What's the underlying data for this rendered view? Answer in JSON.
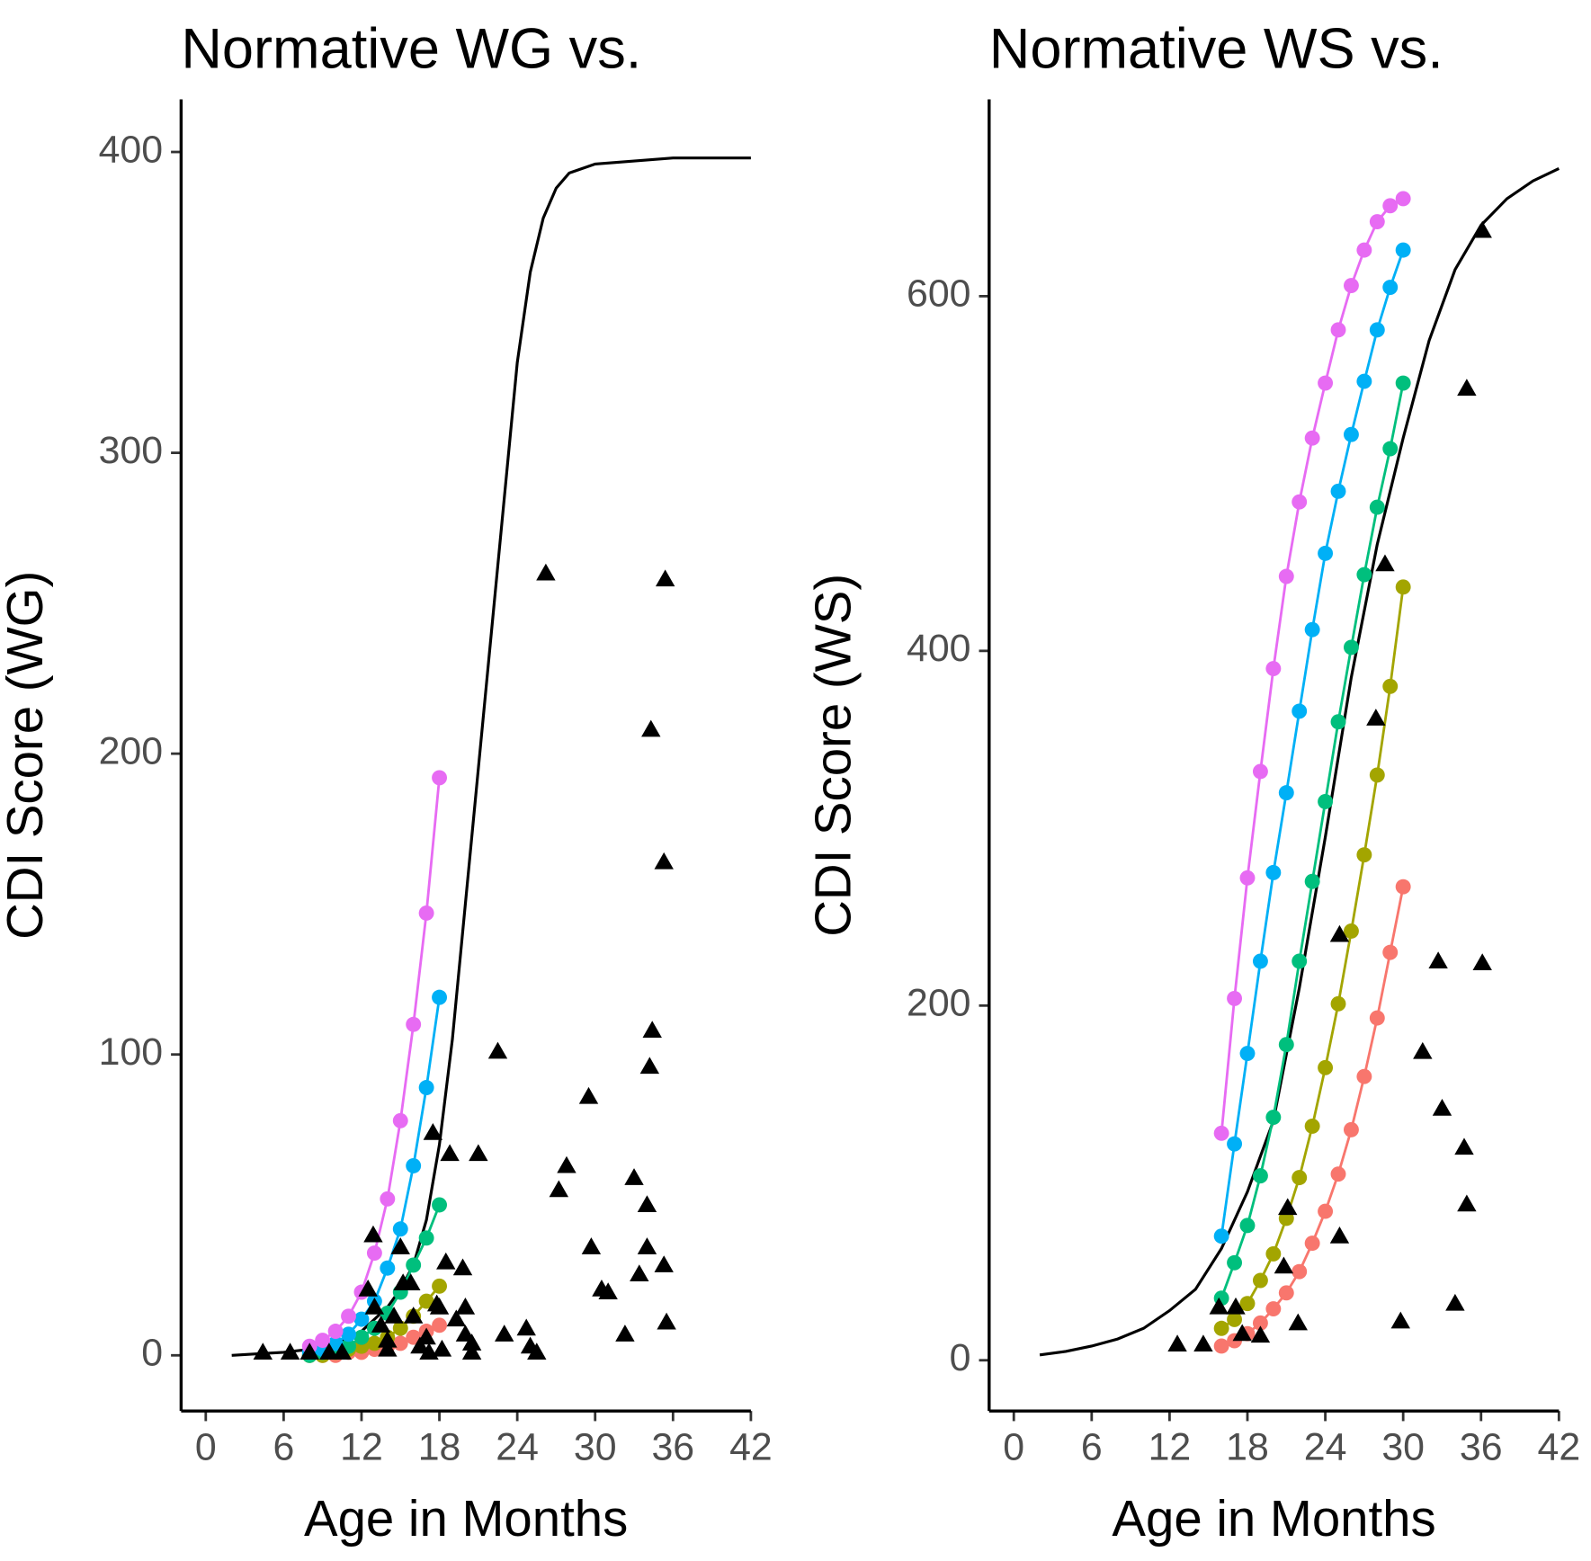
{
  "chart_data": [
    {
      "type": "line",
      "title": "Normative WG vs.",
      "xlabel": "Age in Months",
      "ylabel": "CDI Score (WG)",
      "xlim": [
        -1.9,
        42
      ],
      "ylim": [
        -18.5,
        417.5
      ],
      "xticks": [
        0,
        6,
        12,
        18,
        24,
        30,
        36,
        42
      ],
      "yticks": [
        0,
        100,
        200,
        300,
        400
      ],
      "series": [
        {
          "type": "line",
          "color": "#000000",
          "x": [
            2,
            4,
            6,
            8,
            10,
            12,
            14,
            15,
            16,
            17,
            18,
            19,
            20,
            21,
            22,
            23,
            24,
            25,
            26,
            27,
            28,
            30,
            33,
            36,
            39,
            42
          ],
          "values": [
            0,
            0.5,
            1,
            2,
            4,
            8,
            16,
            22,
            30,
            45,
            70,
            105,
            150,
            195,
            240,
            285,
            330,
            360,
            378,
            388,
            393,
            396,
            397,
            398,
            398,
            398
          ]
        },
        {
          "type": "line",
          "markers": true,
          "color": "#F8766D",
          "x": [
            8,
            9,
            10,
            11,
            12,
            13,
            14,
            15,
            16,
            17,
            18
          ],
          "values": [
            0,
            0,
            0,
            1,
            1,
            2,
            3,
            4,
            6,
            8,
            10
          ]
        },
        {
          "type": "line",
          "markers": true,
          "color": "#A3A500",
          "x": [
            8,
            9,
            10,
            11,
            12,
            13,
            14,
            15,
            16,
            17,
            18
          ],
          "values": [
            0,
            0,
            1,
            2,
            3,
            4,
            6,
            9,
            13,
            18,
            23
          ]
        },
        {
          "type": "line",
          "markers": true,
          "color": "#00BF7D",
          "x": [
            8,
            9,
            10,
            11,
            12,
            13,
            14,
            15,
            16,
            17,
            18
          ],
          "values": [
            0,
            1,
            2,
            3,
            6,
            9,
            14,
            21,
            30,
            39,
            50
          ]
        },
        {
          "type": "line",
          "markers": true,
          "color": "#00B0F6",
          "x": [
            8,
            9,
            10,
            11,
            12,
            13,
            14,
            15,
            16,
            17,
            18
          ],
          "values": [
            1,
            2,
            4,
            7,
            12,
            18,
            29,
            42,
            63,
            89,
            119
          ]
        },
        {
          "type": "line",
          "markers": true,
          "color": "#E76BF3",
          "x": [
            8,
            9,
            10,
            11,
            12,
            13,
            14,
            15,
            16,
            17,
            18
          ],
          "values": [
            3,
            5,
            8,
            13,
            21,
            34,
            52,
            78,
            110,
            147,
            192
          ]
        },
        {
          "type": "scatter",
          "marker": "triangle",
          "color": "#000000",
          "x": [
            4.4,
            6.5,
            8,
            9.5,
            10.5,
            12.9,
            12.5,
            13,
            13.5,
            14,
            14,
            14.5,
            15,
            15.2,
            15.8,
            16,
            16.5,
            17,
            17.2,
            17.5,
            17.8,
            18,
            18.2,
            18.8,
            18.5,
            19.3,
            19.8,
            20,
            20,
            20.5,
            20.5,
            21,
            22.5,
            23,
            24.7,
            25,
            25.5,
            26.2,
            27.2,
            27.8,
            29.5,
            29.7,
            30.5,
            31,
            32.3,
            33,
            33.4,
            34,
            34,
            34.2,
            34.3,
            34.4,
            35.3,
            35.3,
            35.4,
            35.5
          ],
          "values": [
            1,
            1,
            1,
            1,
            1,
            40,
            22,
            16,
            10,
            5,
            2,
            13,
            36,
            24,
            24,
            13,
            3,
            6,
            1,
            74,
            17,
            16,
            2,
            67,
            31,
            12,
            29,
            16,
            7,
            4,
            1,
            67,
            101,
            7,
            9,
            3,
            1,
            260,
            55,
            63,
            86,
            36,
            22,
            21,
            7,
            59,
            27,
            50,
            36,
            96,
            208,
            108,
            30,
            164,
            258,
            11
          ]
        }
      ]
    },
    {
      "type": "line",
      "title": "Normative WS vs.",
      "xlabel": "Age in Months",
      "ylabel": "CDI Score (WS)",
      "xlim": [
        -1.9,
        42
      ],
      "ylim": [
        -28.6,
        711
      ],
      "xticks": [
        0,
        6,
        12,
        18,
        24,
        30,
        36,
        42
      ],
      "yticks": [
        0,
        200,
        400,
        600
      ],
      "series": [
        {
          "type": "line",
          "color": "#000000",
          "x": [
            2,
            4,
            6,
            8,
            10,
            12,
            14,
            16,
            18,
            20,
            22,
            24,
            26,
            28,
            30,
            32,
            34,
            36,
            38,
            40,
            42
          ],
          "values": [
            3,
            5,
            8,
            12,
            18,
            28,
            40,
            63,
            95,
            135,
            210,
            295,
            385,
            460,
            520,
            575,
            615,
            640,
            655,
            665,
            672
          ]
        },
        {
          "type": "line",
          "markers": true,
          "color": "#F8766D",
          "x": [
            16,
            17,
            18,
            19,
            20,
            21,
            22,
            23,
            24,
            25,
            26,
            27,
            28,
            29,
            30
          ],
          "values": [
            8,
            11,
            15,
            21,
            29,
            38,
            50,
            66,
            84,
            105,
            130,
            160,
            193,
            230,
            267
          ]
        },
        {
          "type": "line",
          "markers": true,
          "color": "#A3A500",
          "x": [
            16,
            17,
            18,
            19,
            20,
            21,
            22,
            23,
            24,
            25,
            26,
            27,
            28,
            29,
            30
          ],
          "values": [
            18,
            23,
            32,
            45,
            60,
            80,
            103,
            132,
            165,
            201,
            242,
            285,
            330,
            380,
            436
          ]
        },
        {
          "type": "line",
          "markers": true,
          "color": "#00BF7D",
          "x": [
            16,
            17,
            18,
            19,
            20,
            21,
            22,
            23,
            24,
            25,
            26,
            27,
            28,
            29,
            30
          ],
          "values": [
            35,
            55,
            76,
            104,
            137,
            178,
            225,
            270,
            315,
            360,
            402,
            443,
            481,
            514,
            551
          ]
        },
        {
          "type": "line",
          "markers": true,
          "color": "#00B0F6",
          "x": [
            16,
            17,
            18,
            19,
            20,
            21,
            22,
            23,
            24,
            25,
            26,
            27,
            28,
            29,
            30
          ],
          "values": [
            70,
            122,
            173,
            225,
            275,
            320,
            366,
            412,
            455,
            490,
            522,
            552,
            581,
            605,
            626
          ]
        },
        {
          "type": "line",
          "markers": true,
          "color": "#E76BF3",
          "x": [
            16,
            17,
            18,
            19,
            20,
            21,
            22,
            23,
            24,
            25,
            26,
            27,
            28,
            29,
            30
          ],
          "values": [
            128,
            204,
            272,
            332,
            390,
            442,
            484,
            520,
            551,
            581,
            606,
            626,
            642,
            651,
            655
          ]
        },
        {
          "type": "scatter",
          "marker": "triangle",
          "color": "#000000",
          "x": [
            12.6,
            14.6,
            15.8,
            17.1,
            17.6,
            19,
            20.8,
            21.1,
            21.9,
            25.1,
            25.1,
            27.9,
            28.6,
            29.8,
            31.5,
            32.7,
            33,
            34,
            34.7,
            34.9,
            34.9,
            36.1,
            36.1
          ],
          "values": [
            9,
            9,
            30,
            30,
            15,
            14,
            53,
            86,
            21,
            70,
            240,
            362,
            449,
            22,
            174,
            225,
            142,
            32,
            120,
            548,
            88,
            224,
            637
          ]
        }
      ]
    }
  ]
}
